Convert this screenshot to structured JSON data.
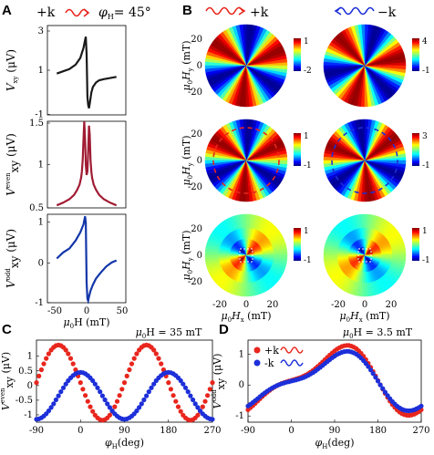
{
  "panels": {
    "A": "A",
    "B": "B",
    "C": "C",
    "D": "D"
  },
  "header_A": {
    "k": "+k",
    "phi": "φ",
    "phi_sub": "H",
    "phi_val": "= 45°"
  },
  "header_B": {
    "plus_k": "+k",
    "minus_k": "−k"
  },
  "chart_data": [
    {
      "id": "A1",
      "type": "line",
      "ylabel": "V",
      "ylabel_sub": "xy",
      "ylabel_unit": "(μV)",
      "ylim": [
        -1.0,
        3.0
      ],
      "yticks": [
        "3",
        "1",
        "-1"
      ],
      "xlim": [
        -50,
        50
      ],
      "color": "#1a1a1a",
      "x": [
        -38,
        -30,
        -22,
        -14,
        -8,
        -4,
        -2,
        -1,
        0,
        1,
        2,
        3,
        4,
        6,
        8,
        12,
        16,
        22,
        30,
        38
      ],
      "y": [
        0.85,
        0.95,
        1.05,
        1.25,
        1.55,
        2.0,
        2.35,
        2.5,
        1.7,
        -0.2,
        -0.55,
        -0.7,
        -0.5,
        0.0,
        0.25,
        0.45,
        0.55,
        0.6,
        0.65,
        0.7
      ]
    },
    {
      "id": "A2",
      "type": "line",
      "ylabel": "V",
      "ylabel_sup": "even",
      "ylabel_sub": "xy",
      "ylabel_unit": "(μV)",
      "ylim": [
        0.5,
        1.5
      ],
      "yticks": [
        "1.5",
        "1",
        "0.5"
      ],
      "xlim": [
        -50,
        50
      ],
      "color": "#a01c33",
      "x": [
        -38,
        -30,
        -22,
        -16,
        -12,
        -9,
        -7,
        -6,
        -5,
        -4,
        -3,
        -2,
        -1,
        0,
        1,
        2,
        3,
        4,
        5,
        6,
        7,
        9,
        12,
        16,
        22,
        30,
        38
      ],
      "y": [
        0.53,
        0.56,
        0.6,
        0.65,
        0.71,
        0.77,
        0.85,
        0.92,
        1.05,
        1.3,
        1.5,
        1.3,
        1.0,
        0.88,
        0.92,
        1.15,
        1.45,
        1.35,
        1.05,
        0.92,
        0.85,
        0.77,
        0.71,
        0.65,
        0.6,
        0.56,
        0.53
      ]
    },
    {
      "id": "A3",
      "type": "line",
      "ylabel": "V",
      "ylabel_sup": "odd",
      "ylabel_sub": "xy",
      "ylabel_unit": "(μV)",
      "ylim": [
        -1.0,
        1.2
      ],
      "yticks": [
        "1",
        "0",
        "-1"
      ],
      "xlim": [
        -50,
        50
      ],
      "xticks": [
        "-50",
        "0",
        "50"
      ],
      "xlabel": "μ",
      "xlabel_sub": "0",
      "xlabel_rest": "H (mT)",
      "color": "#1336a8",
      "x": [
        -38,
        -30,
        -22,
        -14,
        -8,
        -4,
        -2,
        -1,
        0,
        1,
        2,
        3,
        5,
        8,
        12,
        18,
        25,
        32,
        38
      ],
      "y": [
        0.1,
        0.25,
        0.35,
        0.55,
        0.75,
        0.95,
        1.15,
        1.0,
        -0.5,
        -0.9,
        -0.95,
        -0.85,
        -0.7,
        -0.55,
        -0.4,
        -0.25,
        -0.1,
        0.0,
        0.05
      ]
    },
    {
      "id": "B",
      "type": "heatmap",
      "yticks": [
        "20",
        "0",
        "-20"
      ],
      "xticks": [
        "-20",
        "0",
        "20"
      ],
      "ylabel": "μ",
      "ylabel_sub": "0",
      "ylabel_rest": "H",
      "ylabel_sub2": "y",
      "ylabel_unit": "(mT)",
      "xlabel": "μ",
      "xlabel_sub": "0",
      "xlabel_rest": "H",
      "xlabel_sub2": "x",
      "xlabel_unit": "(mT)",
      "colorbars": [
        {
          "top": "1",
          "bottom": "-2"
        },
        {
          "top": "4",
          "bottom": "-1"
        },
        {
          "top": "1",
          "bottom": "-1"
        },
        {
          "top": "3",
          "bottom": "-1"
        },
        {
          "top": "1",
          "bottom": "-1"
        },
        {
          "top": "1",
          "bottom": "-1"
        }
      ]
    },
    {
      "id": "C",
      "type": "scatter",
      "title": "μ",
      "title_sub": "0",
      "title_rest": "H = 35 mT",
      "ylabel": "V",
      "ylabel_sup": "even",
      "ylabel_sub": "xy",
      "ylabel_unit": "(μV)",
      "ylim": [
        -1.25,
        1.55
      ],
      "yticks": [
        "1",
        "0.5",
        "0",
        "-0.5",
        "-1"
      ],
      "xlim": [
        -90,
        270
      ],
      "xticks": [
        "-90",
        "0",
        "90",
        "180",
        "270"
      ],
      "xlabel": "φ",
      "xlabel_sub": "H",
      "xlabel_unit": "(deg)",
      "series": [
        {
          "color": "#e8261e",
          "amp": 1.35,
          "offset": 0.1,
          "phase": 0,
          "period": 90
        },
        {
          "color": "#1c2fd8",
          "amp": 0.8,
          "offset": -0.35,
          "phase": 45,
          "period": 90
        }
      ]
    },
    {
      "id": "D",
      "type": "scatter",
      "title": "μ",
      "title_sub": "0",
      "title_rest": "H = 3.5 mT",
      "ylabel": "V",
      "ylabel_sup": "odd",
      "ylabel_sub": "xy",
      "ylabel_unit": "(μV)",
      "ylim": [
        -1.2,
        1.45
      ],
      "yticks": [
        "1",
        "0",
        "-1"
      ],
      "xlim": [
        -90,
        270
      ],
      "xticks": [
        "-90",
        "0",
        "90",
        "180",
        "270"
      ],
      "xlabel": "φ",
      "xlabel_sub": "H",
      "xlabel_unit": "(deg)",
      "legend": [
        {
          "label": "+k",
          "color": "#e8261e"
        },
        {
          "label": "-k",
          "color": "#1c2fd8"
        }
      ],
      "series": [
        {
          "color": "#e8261e",
          "sign": 1
        },
        {
          "color": "#1c2fd8",
          "sign": 0.85
        }
      ]
    }
  ]
}
